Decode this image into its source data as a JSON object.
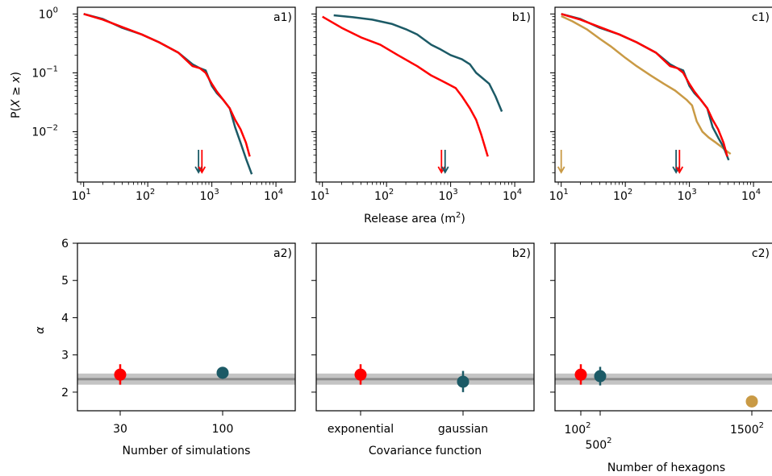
{
  "figure": {
    "top_ylabel": "P(X ≥ x)",
    "top_xlabel": "Release area (m²)",
    "bottom_ylabel": "α"
  },
  "colors": {
    "red": "#ff0000",
    "teal": "#1c5a66",
    "gold": "#c99a45",
    "band_outer": "#c4c4c4",
    "band_line": "#8c8c8c"
  },
  "chart_data": [
    {
      "type": "line",
      "panel_label": "a1)",
      "x_scale": "log",
      "y_scale": "log",
      "xlim": [
        8,
        20000
      ],
      "ylim": [
        0.0014,
        1.3
      ],
      "grid": false,
      "xticks": [
        {
          "v": 10,
          "base": "10",
          "exp": "1"
        },
        {
          "v": 100,
          "base": "10",
          "exp": "2"
        },
        {
          "v": 1000,
          "base": "10",
          "exp": "3"
        },
        {
          "v": 10000,
          "base": "10",
          "exp": "4"
        }
      ],
      "yticks": [
        {
          "v": 1,
          "base": "10",
          "exp": "0"
        },
        {
          "v": 0.1,
          "base": "10",
          "exp": "−1"
        },
        {
          "v": 0.01,
          "base": "10",
          "exp": "−2"
        }
      ],
      "series": [
        {
          "color": "#1c5a66",
          "x": [
            10,
            20,
            40,
            80,
            150,
            300,
            500,
            650,
            800,
            1000,
            1200,
            1500,
            1900,
            2300,
            2800,
            3400,
            4200
          ],
          "y": [
            1.0,
            0.82,
            0.58,
            0.45,
            0.33,
            0.22,
            0.14,
            0.12,
            0.11,
            0.06,
            0.045,
            0.035,
            0.025,
            0.012,
            0.0065,
            0.0035,
            0.0019
          ]
        },
        {
          "color": "#ff0000",
          "x": [
            10,
            20,
            40,
            80,
            150,
            300,
            500,
            650,
            800,
            1000,
            1200,
            1500,
            1900,
            2300,
            2800,
            3400,
            3900
          ],
          "y": [
            1.0,
            0.8,
            0.6,
            0.45,
            0.33,
            0.22,
            0.13,
            0.12,
            0.1,
            0.065,
            0.048,
            0.035,
            0.025,
            0.016,
            0.011,
            0.0065,
            0.0038
          ]
        }
      ],
      "arrows": [
        {
          "color": "#1c5a66",
          "x": 620
        },
        {
          "color": "#ff0000",
          "x": 700
        }
      ]
    },
    {
      "type": "line",
      "panel_label": "b1)",
      "x_scale": "log",
      "y_scale": "log",
      "xlim": [
        8,
        20000
      ],
      "ylim": [
        0.0014,
        1.3
      ],
      "grid": false,
      "xticks": [
        {
          "v": 10,
          "base": "10",
          "exp": "1"
        },
        {
          "v": 100,
          "base": "10",
          "exp": "2"
        },
        {
          "v": 1000,
          "base": "10",
          "exp": "3"
        },
        {
          "v": 10000,
          "base": "10",
          "exp": "4"
        }
      ],
      "series": [
        {
          "color": "#1c5a66",
          "x": [
            15,
            30,
            60,
            120,
            200,
            300,
            500,
            700,
            1000,
            1500,
            2000,
            2500,
            3000,
            4000,
            5000,
            6300
          ],
          "y": [
            0.95,
            0.88,
            0.8,
            0.68,
            0.55,
            0.45,
            0.3,
            0.25,
            0.2,
            0.17,
            0.14,
            0.1,
            0.085,
            0.065,
            0.04,
            0.022
          ]
        },
        {
          "color": "#ff0000",
          "x": [
            10,
            20,
            40,
            80,
            150,
            300,
            500,
            700,
            900,
            1200,
            1500,
            2000,
            2500,
            3000,
            3800
          ],
          "y": [
            0.9,
            0.58,
            0.4,
            0.3,
            0.2,
            0.13,
            0.09,
            0.075,
            0.065,
            0.055,
            0.04,
            0.025,
            0.016,
            0.009,
            0.0038
          ]
        }
      ],
      "arrows": [
        {
          "color": "#ff0000",
          "x": 720
        },
        {
          "color": "#1c5a66",
          "x": 820
        }
      ]
    },
    {
      "type": "line",
      "panel_label": "c1)",
      "x_scale": "log",
      "y_scale": "log",
      "xlim": [
        8,
        20000
      ],
      "ylim": [
        0.0014,
        1.3
      ],
      "grid": false,
      "xticks": [
        {
          "v": 10,
          "base": "10",
          "exp": "1"
        },
        {
          "v": 100,
          "base": "10",
          "exp": "2"
        },
        {
          "v": 1000,
          "base": "10",
          "exp": "3"
        },
        {
          "v": 10000,
          "base": "10",
          "exp": "4"
        }
      ],
      "series": [
        {
          "color": "#c99a45",
          "x": [
            10,
            15,
            25,
            40,
            60,
            100,
            150,
            250,
            400,
            600,
            900,
            1100,
            1300,
            1600,
            2000,
            2600,
            3200,
            4000,
            4400
          ],
          "y": [
            0.92,
            0.75,
            0.55,
            0.38,
            0.28,
            0.18,
            0.13,
            0.09,
            0.065,
            0.05,
            0.035,
            0.028,
            0.015,
            0.01,
            0.008,
            0.0065,
            0.0055,
            0.0045,
            0.0042
          ]
        },
        {
          "color": "#1c5a66",
          "x": [
            10,
            20,
            40,
            80,
            150,
            300,
            500,
            650,
            800,
            1000,
            1200,
            1500,
            1900,
            2300,
            2800,
            3400,
            4100
          ],
          "y": [
            1.0,
            0.82,
            0.58,
            0.45,
            0.33,
            0.22,
            0.14,
            0.12,
            0.11,
            0.06,
            0.045,
            0.035,
            0.025,
            0.012,
            0.008,
            0.0055,
            0.0033
          ]
        },
        {
          "color": "#ff0000",
          "x": [
            10,
            20,
            40,
            80,
            150,
            300,
            500,
            650,
            800,
            1000,
            1200,
            1500,
            1900,
            2300,
            2800,
            3400,
            3900
          ],
          "y": [
            1.0,
            0.8,
            0.6,
            0.45,
            0.33,
            0.22,
            0.13,
            0.12,
            0.1,
            0.065,
            0.048,
            0.035,
            0.025,
            0.016,
            0.011,
            0.0065,
            0.0038
          ]
        }
      ],
      "arrows": [
        {
          "color": "#c99a45",
          "x": 10
        },
        {
          "color": "#1c5a66",
          "x": 620
        },
        {
          "color": "#ff0000",
          "x": 700
        }
      ]
    },
    {
      "type": "scatter",
      "panel_label": "a2)",
      "xlabel": "Number of simulations",
      "ylim": [
        1.5,
        6
      ],
      "yticks": [
        2,
        3,
        4,
        5,
        6
      ],
      "grid": false,
      "band": {
        "low": 2.2,
        "high": 2.5,
        "line": 2.35
      },
      "categories": [
        "30",
        "100"
      ],
      "points": [
        {
          "category": "30",
          "value": 2.47,
          "err_low": 2.2,
          "err_high": 2.75,
          "color": "#ff0000"
        },
        {
          "category": "100",
          "value": 2.52,
          "err_low": 2.36,
          "err_high": 2.68,
          "color": "#1c5a66"
        }
      ]
    },
    {
      "type": "scatter",
      "panel_label": "b2)",
      "xlabel": "Covariance function",
      "ylim": [
        1.5,
        6
      ],
      "grid": false,
      "band": {
        "low": 2.2,
        "high": 2.5,
        "line": 2.35
      },
      "categories": [
        "exponential",
        "gaussian"
      ],
      "points": [
        {
          "category": "exponential",
          "value": 2.47,
          "err_low": 2.2,
          "err_high": 2.75,
          "color": "#ff0000"
        },
        {
          "category": "gaussian",
          "value": 2.28,
          "err_low": 2.0,
          "err_high": 2.57,
          "color": "#1c5a66"
        }
      ]
    },
    {
      "type": "scatter",
      "panel_label": "c2)",
      "xlabel": "Number of hexagons",
      "ylim": [
        1.5,
        6
      ],
      "grid": false,
      "band": {
        "low": 2.2,
        "high": 2.5,
        "line": 2.35
      },
      "categories": [
        {
          "base": "100",
          "exp": "2",
          "value": 100
        },
        {
          "base": "500",
          "exp": "2",
          "value": 500
        },
        {
          "base": "1500",
          "exp": "2",
          "value": 1500
        }
      ],
      "points": [
        {
          "category": "100²",
          "value": 2.47,
          "err_low": 2.2,
          "err_high": 2.75,
          "color": "#ff0000"
        },
        {
          "category": "500²",
          "value": 2.43,
          "err_low": 2.18,
          "err_high": 2.68,
          "color": "#1c5a66"
        },
        {
          "category": "1500²",
          "value": 1.75,
          "color": "#c99a45"
        }
      ]
    }
  ]
}
